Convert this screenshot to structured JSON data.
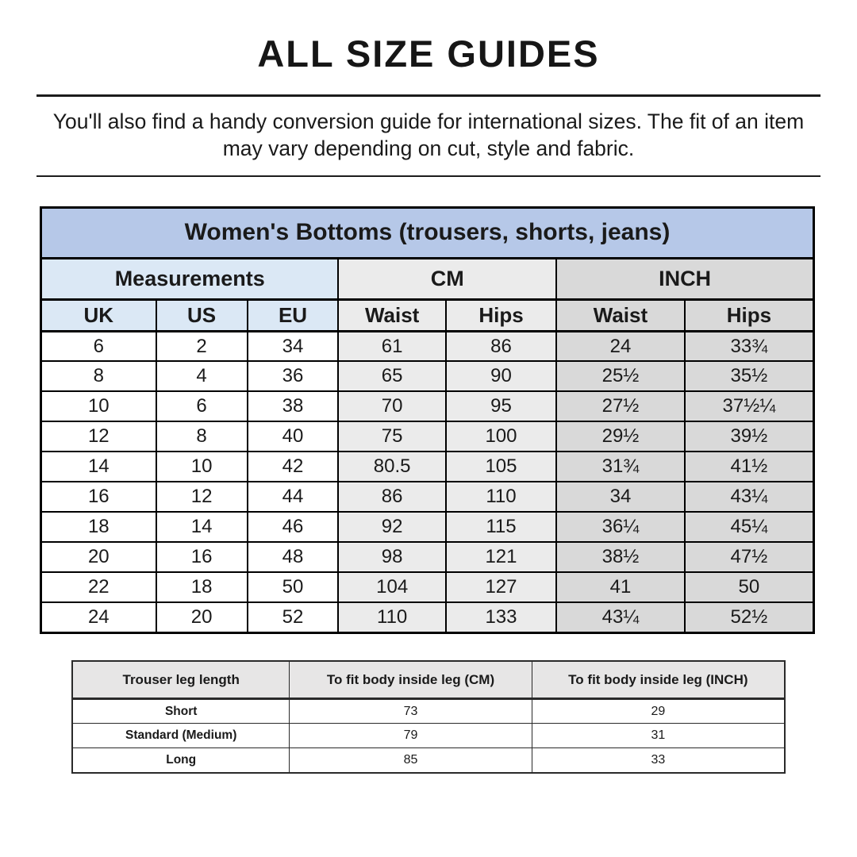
{
  "page": {
    "title": "ALL SIZE GUIDES",
    "intro": "You'll also find a handy conversion guide for international sizes. The fit of an item may vary depending on cut, style and fabric."
  },
  "colors": {
    "header_blue": "#b6c8e8",
    "light_blue": "#dbe8f5",
    "light_gray": "#ebebeb",
    "mid_gray": "#d9d9d9",
    "leg_header_gray": "#e7e6e6",
    "border": "#000000",
    "text": "#1a1a1a"
  },
  "size_table": {
    "title": "Women's Bottoms (trousers, shorts, jeans)",
    "groups": [
      {
        "label": "Measurements",
        "span": 3
      },
      {
        "label": "CM",
        "span": 2
      },
      {
        "label": "INCH",
        "span": 2
      }
    ],
    "columns": [
      "UK",
      "US",
      "EU",
      "Waist",
      "Hips",
      "Waist",
      "Hips"
    ],
    "rows": [
      [
        "6",
        "2",
        "34",
        "61",
        "86",
        "24",
        "33¾"
      ],
      [
        "8",
        "4",
        "36",
        "65",
        "90",
        "25½",
        "35½"
      ],
      [
        "10",
        "6",
        "38",
        "70",
        "95",
        "27½",
        "37½¼"
      ],
      [
        "12",
        "8",
        "40",
        "75",
        "100",
        "29½",
        "39½"
      ],
      [
        "14",
        "10",
        "42",
        "80.5",
        "105",
        "31¾",
        "41½"
      ],
      [
        "16",
        "12",
        "44",
        "86",
        "110",
        "34",
        "43¼"
      ],
      [
        "18",
        "14",
        "46",
        "92",
        "115",
        "36¼",
        "45¼"
      ],
      [
        "20",
        "16",
        "48",
        "98",
        "121",
        "38½",
        "47½"
      ],
      [
        "22",
        "18",
        "50",
        "104",
        "127",
        "41",
        "50"
      ],
      [
        "24",
        "20",
        "52",
        "110",
        "133",
        "43¼",
        "52½"
      ]
    ]
  },
  "leg_table": {
    "columns": [
      "Trouser leg length",
      "To fit body inside leg (CM)",
      "To fit body inside leg (INCH)"
    ],
    "rows": [
      [
        "Short",
        "73",
        "29"
      ],
      [
        "Standard (Medium)",
        "79",
        "31"
      ],
      [
        "Long",
        "85",
        "33"
      ]
    ]
  }
}
